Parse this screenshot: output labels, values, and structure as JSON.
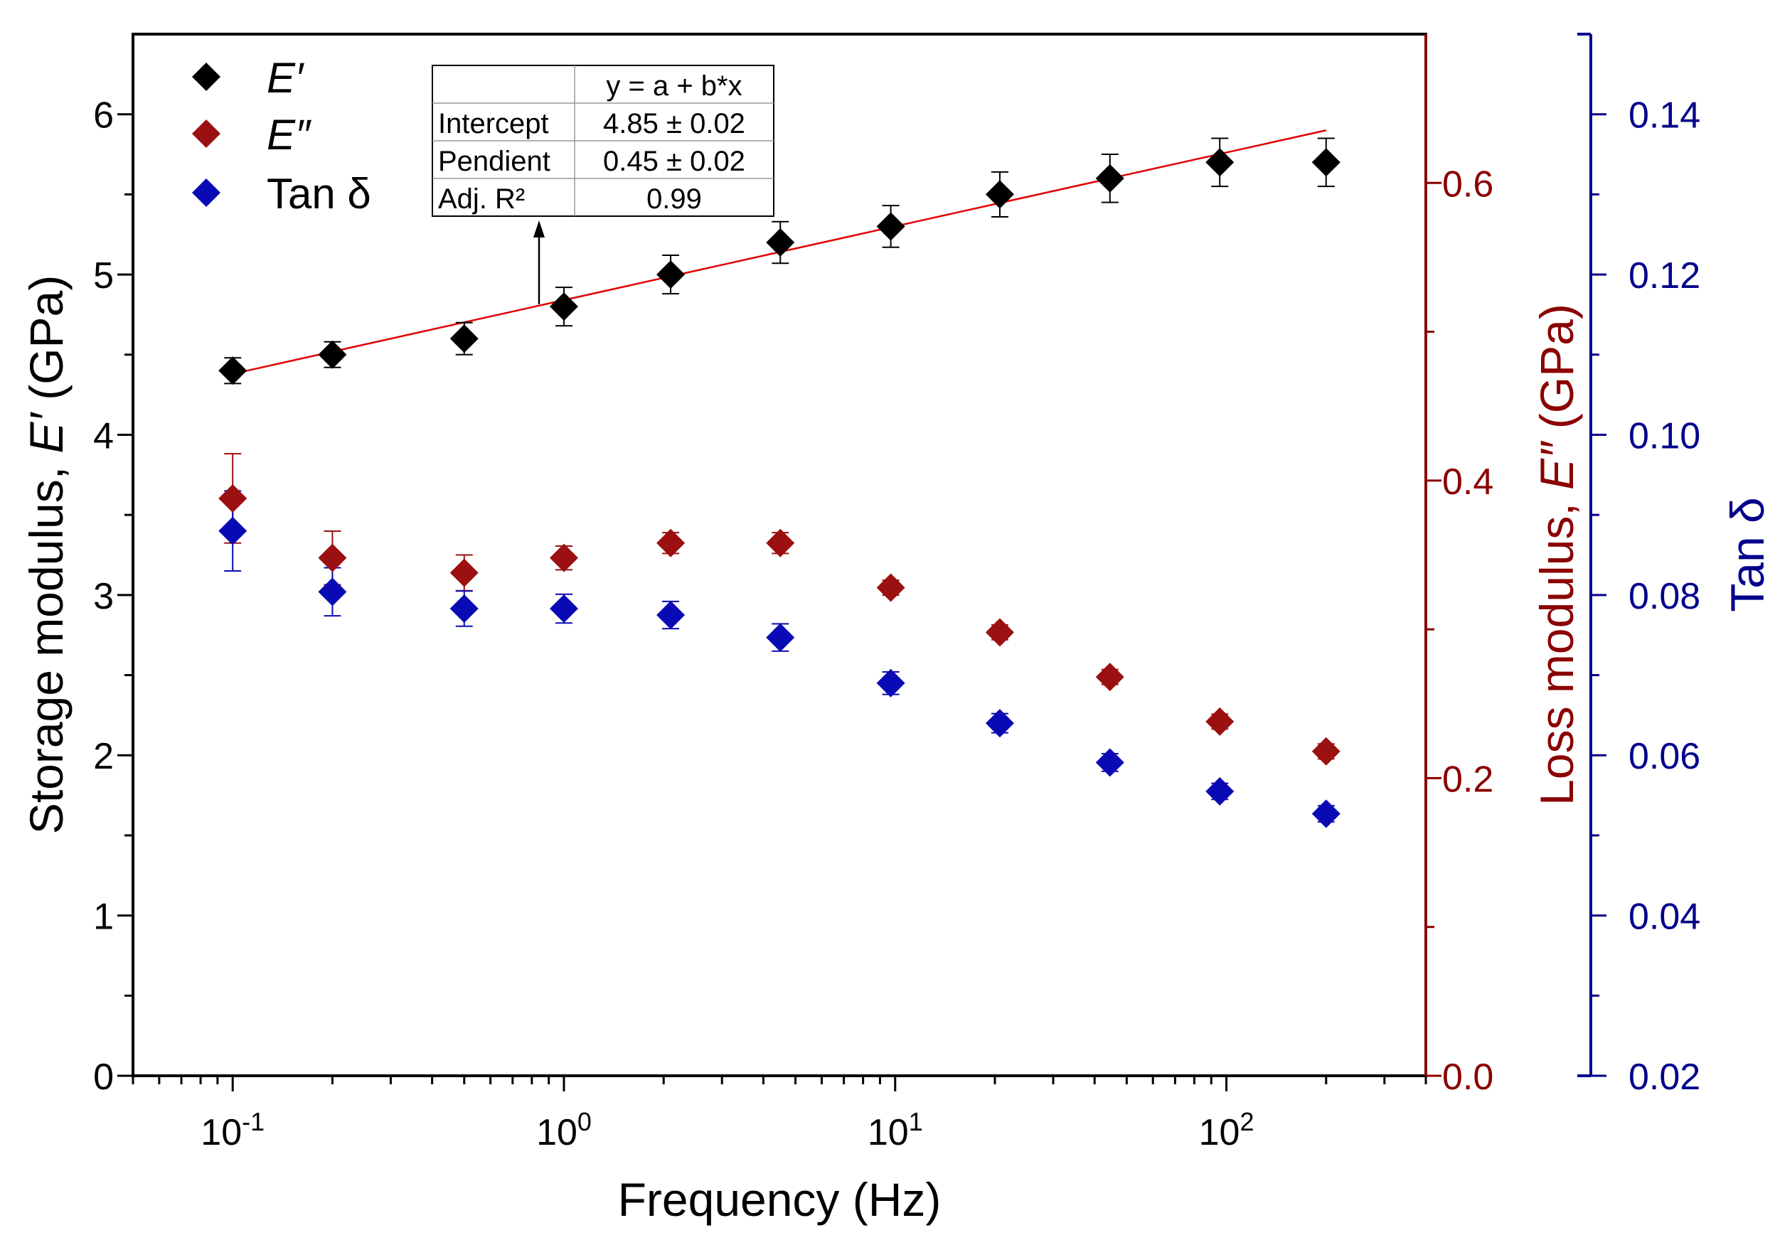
{
  "chart_data": {
    "type": "scatter",
    "xlabel": "Frequency (Hz)",
    "x_scale": "log",
    "xlim": [
      0.05,
      400
    ],
    "x_ticks": [
      {
        "value": 0.1,
        "base": "10",
        "exp": "-1"
      },
      {
        "value": 1,
        "base": "10",
        "exp": "0"
      },
      {
        "value": 10,
        "base": "10",
        "exp": "1"
      },
      {
        "value": 100,
        "base": "10",
        "exp": "2"
      }
    ],
    "axes": {
      "left": {
        "label_prefix": "Storage modulus, ",
        "label_symbol": "E′",
        "label_suffix": " (GPa)",
        "ylim": [
          0,
          6.5
        ],
        "ticks": [
          {
            "value": 0,
            "label": "0"
          },
          {
            "value": 1,
            "label": "1"
          },
          {
            "value": 2,
            "label": "2"
          },
          {
            "value": 3,
            "label": "3"
          },
          {
            "value": 4,
            "label": "4"
          },
          {
            "value": 5,
            "label": "5"
          },
          {
            "value": 6,
            "label": "6"
          }
        ],
        "color": "#000000"
      },
      "right1": {
        "label_prefix": "Loss modulus, ",
        "label_symbol": "E″",
        "label_suffix": " (GPa)",
        "ylim": [
          0,
          0.7
        ],
        "ticks": [
          {
            "value": 0,
            "label": "0.0"
          },
          {
            "value": 0.2,
            "label": "0.2"
          },
          {
            "value": 0.4,
            "label": "0.4"
          },
          {
            "value": 0.6,
            "label": "0.6"
          }
        ],
        "color": "#8B0000"
      },
      "right2": {
        "label": "Tan δ",
        "ylim": [
          0.02,
          0.15
        ],
        "ticks": [
          {
            "value": 0.02,
            "label": "0.02"
          },
          {
            "value": 0.04,
            "label": "0.04"
          },
          {
            "value": 0.06,
            "label": "0.06"
          },
          {
            "value": 0.08,
            "label": "0.08"
          },
          {
            "value": 0.1,
            "label": "0.10"
          },
          {
            "value": 0.12,
            "label": "0.12"
          },
          {
            "value": 0.14,
            "label": "0.14"
          }
        ],
        "color": "#00008B"
      }
    },
    "series": [
      {
        "name": "E′",
        "italic": true,
        "axis": "left",
        "color": "#000000",
        "points": [
          {
            "x": 0.1,
            "y": 4.4,
            "err": 0.08
          },
          {
            "x": 0.2,
            "y": 4.5,
            "err": 0.08
          },
          {
            "x": 0.5,
            "y": 4.6,
            "err": 0.1
          },
          {
            "x": 1.0,
            "y": 4.8,
            "err": 0.12
          },
          {
            "x": 2.1,
            "y": 5.0,
            "err": 0.12
          },
          {
            "x": 4.5,
            "y": 5.2,
            "err": 0.13
          },
          {
            "x": 9.7,
            "y": 5.3,
            "err": 0.13
          },
          {
            "x": 20.7,
            "y": 5.5,
            "err": 0.14
          },
          {
            "x": 44.5,
            "y": 5.6,
            "err": 0.15
          },
          {
            "x": 95.5,
            "y": 5.7,
            "err": 0.15
          },
          {
            "x": 200,
            "y": 5.7,
            "err": 0.15
          }
        ]
      },
      {
        "name": "E″",
        "italic": true,
        "axis": "right1",
        "color": "#9B1010",
        "points": [
          {
            "x": 0.1,
            "y": 0.388,
            "err": 0.03
          },
          {
            "x": 0.2,
            "y": 0.348,
            "err": 0.018
          },
          {
            "x": 0.5,
            "y": 0.338,
            "err": 0.012
          },
          {
            "x": 1.0,
            "y": 0.348,
            "err": 0.008
          },
          {
            "x": 2.1,
            "y": 0.358,
            "err": 0.007
          },
          {
            "x": 4.5,
            "y": 0.358,
            "err": 0.007
          },
          {
            "x": 9.7,
            "y": 0.328,
            "err": 0.005
          },
          {
            "x": 20.7,
            "y": 0.298,
            "err": 0.005
          },
          {
            "x": 44.5,
            "y": 0.268,
            "err": 0.005
          },
          {
            "x": 95.5,
            "y": 0.238,
            "err": 0.005
          },
          {
            "x": 200,
            "y": 0.218,
            "err": 0.005
          }
        ]
      },
      {
        "name": "Tan δ",
        "italic": false,
        "axis": "right2",
        "color": "#0A0AB4",
        "points": [
          {
            "x": 0.1,
            "y": 0.088,
            "err": 0.005
          },
          {
            "x": 0.2,
            "y": 0.0804,
            "err": 0.003
          },
          {
            "x": 0.5,
            "y": 0.0783,
            "err": 0.0022
          },
          {
            "x": 1.0,
            "y": 0.0783,
            "err": 0.0018
          },
          {
            "x": 2.1,
            "y": 0.0775,
            "err": 0.0017
          },
          {
            "x": 4.5,
            "y": 0.0747,
            "err": 0.0017
          },
          {
            "x": 9.7,
            "y": 0.069,
            "err": 0.0014
          },
          {
            "x": 20.7,
            "y": 0.064,
            "err": 0.0012
          },
          {
            "x": 44.5,
            "y": 0.0591,
            "err": 0.0011
          },
          {
            "x": 95.5,
            "y": 0.0555,
            "err": 0.001
          },
          {
            "x": 200,
            "y": 0.0527,
            "err": 0.001
          }
        ]
      }
    ],
    "fit_line": {
      "color": "#E00000",
      "x": [
        0.1,
        200
      ],
      "y": [
        4.38,
        5.9
      ]
    },
    "fit_table": {
      "equation": "y = a + b*x",
      "rows": [
        {
          "label": "Intercept",
          "value": "4.85 ± 0.02"
        },
        {
          "label": "Pendient",
          "value": "0.45 ± 0.02"
        },
        {
          "label": "Adj. R²",
          "value": "0.99"
        }
      ]
    },
    "legend_position": "top-left",
    "grid": false
  }
}
